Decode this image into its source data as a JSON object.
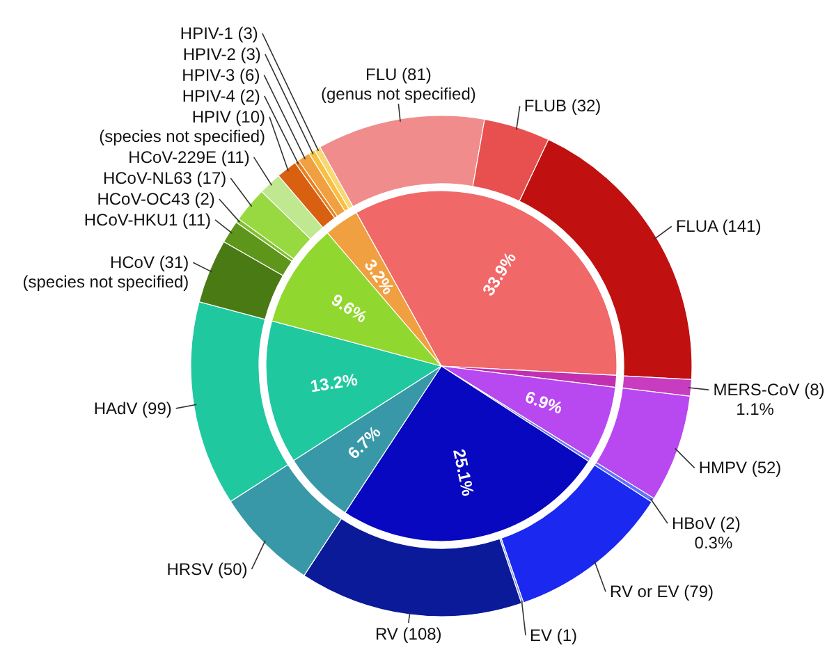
{
  "chart_data": [
    {
      "type": "pie",
      "categories": [
        null,
        null,
        null,
        null,
        null,
        null,
        null,
        null,
        null
      ],
      "values": [
        33.9,
        1.1,
        6.9,
        0.3,
        25.1,
        6.7,
        13.2,
        9.6,
        3.2
      ],
      "colors": [
        "#f06868",
        "#c030b0",
        "#b848f0",
        "#7078f8",
        "#0808c0",
        "#3898a8",
        "#20c8a0",
        "#90d830",
        "#f0a040"
      ],
      "value_labels": [
        "33.9%",
        "1.1%",
        "6.9%",
        "0.3%",
        "25.1%",
        "6.7%",
        "13.2%",
        "9.6%",
        "3.2%"
      ]
    },
    {
      "type": "donut",
      "categories": [
        "FLU (81)\n(genus not specified)",
        "FLUB (32)",
        "FLUA (141)",
        "MERS-CoV (8)",
        "HMPV (52)",
        "HBoV (2)",
        "RV or EV (79)",
        "EV (1)",
        "RV (108)",
        "HRSV (50)",
        "HAdV (99)",
        "HCoV (31)\n(species not specified)",
        "HCoV-HKU1 (11)",
        "HCoV-OC43 (2)",
        "HCoV-NL63 (17)",
        "HCoV-229E (11)",
        "HPIV (10)\n(species not specified)",
        "HPIV-4 (2)",
        "HPIV-3 (6)",
        "HPIV-2 (3)",
        "HPIV-1 (3)"
      ],
      "values": [
        81,
        32,
        141,
        8,
        52,
        2,
        79,
        1,
        108,
        50,
        99,
        31,
        11,
        2,
        17,
        11,
        10,
        2,
        6,
        3,
        3
      ],
      "colors": [
        "#f08c8c",
        "#e85050",
        "#c01010",
        "#c83cc0",
        "#b848f0",
        "#6070ff",
        "#1a28f0",
        "#8090e0",
        "#0a1a98",
        "#3898a8",
        "#20c8a0",
        "#4a7a14",
        "#5e961c",
        "#80c030",
        "#98d840",
        "#c0e890",
        "#d86010",
        "#e88020",
        "#f0a040",
        "#f8c040",
        "#f8d870"
      ]
    }
  ]
}
